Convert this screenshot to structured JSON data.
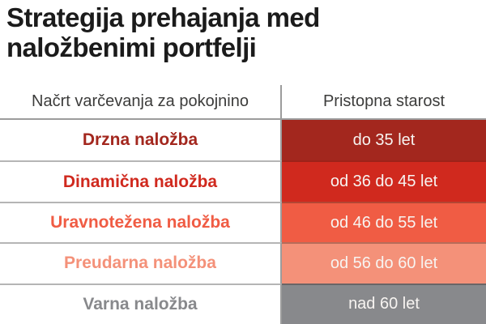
{
  "title": {
    "full": "Strategija prehajanja med naložbenimi portfelji",
    "line1": "Strategija prehajanja med",
    "line2": "naložbenimi portfelji"
  },
  "table": {
    "columns": [
      {
        "label": "Načrt varčevanja za pokojnino"
      },
      {
        "label": "Pristopna starost"
      }
    ],
    "rows": [
      {
        "plan": "Drzna naložba",
        "age": "do 35 let",
        "color": "#a3271e"
      },
      {
        "plan": "Dinamična naložba",
        "age": "od 36 do 45 let",
        "color": "#d0291e"
      },
      {
        "plan": "Uravnotežena naložba",
        "age": "od 46 do 55 let",
        "color": "#f05c44"
      },
      {
        "plan": "Preudarna naložba",
        "age": "od 56 do 60 let",
        "color": "#f49179"
      },
      {
        "plan": "Varna naložba",
        "age": "nad 60 let",
        "color": "#88898c"
      }
    ]
  },
  "colors": {
    "title_text": "#1b1b1b",
    "header_text": "#3c3c3b",
    "divider": "#9c9c9c",
    "row_separator": "#b5b5b5",
    "value_text": "#f7f4f1",
    "background": "#ffffff"
  },
  "chart_data": {
    "type": "table",
    "title": "Strategija prehajanja med naložbenimi portfelji",
    "columns": [
      "Načrt varčevanja za pokojnino",
      "Pristopna starost"
    ],
    "rows": [
      [
        "Drzna naložba",
        "do 35 let"
      ],
      [
        "Dinamična naložba",
        "od 36 do 45 let"
      ],
      [
        "Uravnotežena naložba",
        "od 46 do 55 let"
      ],
      [
        "Preudarna naložba",
        "od 56 do 60 let"
      ],
      [
        "Varna naložba",
        "nad 60 let"
      ]
    ],
    "row_colors": [
      "#a3271e",
      "#d0291e",
      "#f05c44",
      "#f49179",
      "#88898c"
    ],
    "legend_position": "none",
    "grid": false
  }
}
